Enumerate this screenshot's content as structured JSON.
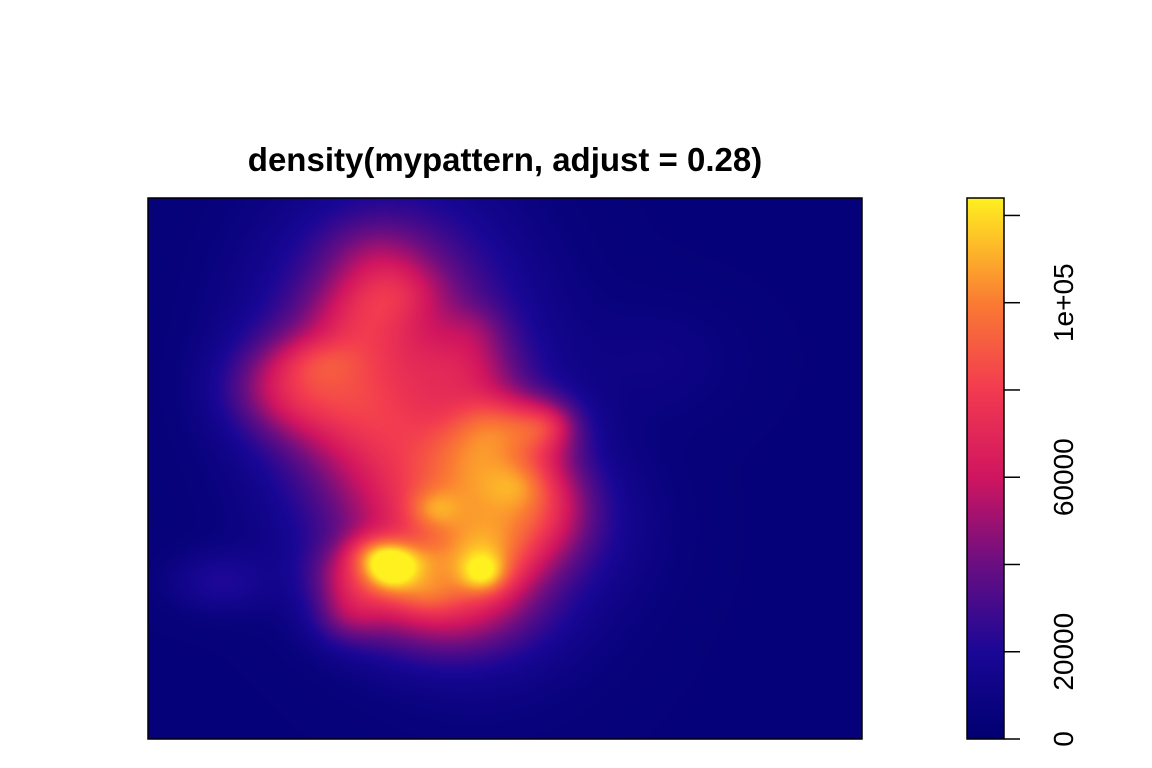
{
  "chart_data": {
    "type": "heatmap",
    "title": "density(mypattern, adjust = 0.28)",
    "xlabel": "",
    "ylabel": "",
    "axes_shown": false,
    "colorbar": {
      "range": [
        0,
        124000
      ],
      "ticks": [
        0,
        20000,
        40000,
        60000,
        80000,
        100000,
        120000
      ],
      "tick_labels": [
        "0",
        "20000",
        "",
        "60000",
        "",
        "1e+05",
        ""
      ],
      "label_orientation": "vertical",
      "placement": "right"
    },
    "color_scale": {
      "name": "spatstat default (navy → purple → magenta → orange → yellow)",
      "stops": [
        {
          "value": 0,
          "color": "#000070"
        },
        {
          "value": 20000,
          "color": "#1A0796"
        },
        {
          "value": 40000,
          "color": "#6A0E82"
        },
        {
          "value": 60000,
          "color": "#D01560"
        },
        {
          "value": 80000,
          "color": "#F23A50"
        },
        {
          "value": 100000,
          "color": "#FA7B33"
        },
        {
          "value": 124000,
          "color": "#FFF020"
        }
      ]
    },
    "background_value": 4000,
    "density_peaks": [
      {
        "x": 0.343,
        "y": 0.74,
        "peak": 48000,
        "sx": 0.12,
        "sy": 0.18
      },
      {
        "x": 0.33,
        "y": 0.56,
        "peak": 10000,
        "sx": 0.12,
        "sy": 0.11
      },
      {
        "x": 0.19,
        "y": 0.65,
        "peak": 26000,
        "sx": 0.06,
        "sy": 0.06
      },
      {
        "x": 0.24,
        "y": 0.64,
        "peak": 20000,
        "sx": 0.07,
        "sy": 0.08
      },
      {
        "x": 0.315,
        "y": 0.58,
        "peak": 14000,
        "sx": 0.06,
        "sy": 0.08
      },
      {
        "x": 0.3,
        "y": 0.78,
        "peak": 20000,
        "sx": 0.05,
        "sy": 0.06
      },
      {
        "x": 0.35,
        "y": 0.83,
        "peak": 16000,
        "sx": 0.045,
        "sy": 0.04
      },
      {
        "x": 0.32,
        "y": 0.9,
        "peak": 12000,
        "sx": 0.05,
        "sy": 0.045
      },
      {
        "x": 0.46,
        "y": 0.28,
        "peak": 14000,
        "sx": 0.12,
        "sy": 0.14
      },
      {
        "x": 0.4,
        "y": 0.23,
        "peak": 30000,
        "sx": 0.09,
        "sy": 0.06
      },
      {
        "x": 0.41,
        "y": 0.41,
        "peak": 38000,
        "sx": 0.12,
        "sy": 0.1
      },
      {
        "x": 0.46,
        "y": 0.44,
        "peak": 30000,
        "sx": 0.08,
        "sy": 0.14
      },
      {
        "x": 0.48,
        "y": 0.51,
        "peak": 22000,
        "sx": 0.06,
        "sy": 0.06
      },
      {
        "x": 0.47,
        "y": 0.33,
        "peak": 32000,
        "sx": 0.045,
        "sy": 0.05
      },
      {
        "x": 0.55,
        "y": 0.43,
        "peak": 30000,
        "sx": 0.05,
        "sy": 0.07
      },
      {
        "x": 0.55,
        "y": 0.58,
        "peak": 36000,
        "sx": 0.04,
        "sy": 0.04
      },
      {
        "x": 0.29,
        "y": 0.305,
        "peak": 26000,
        "sx": 0.045,
        "sy": 0.04
      },
      {
        "x": 0.28,
        "y": 0.23,
        "peak": 22000,
        "sx": 0.035,
        "sy": 0.04
      },
      {
        "x": 0.4,
        "y": 0.425,
        "peak": 18000,
        "sx": 0.025,
        "sy": 0.025
      },
      {
        "x": 0.39,
        "y": 0.27,
        "peak": 20000,
        "sx": 0.035,
        "sy": 0.03
      },
      {
        "x": 0.1,
        "y": 0.29,
        "peak": 16000,
        "sx": 0.05,
        "sy": 0.04
      },
      {
        "x": 0.45,
        "y": 0.69,
        "peak": 18000,
        "sx": 0.05,
        "sy": 0.05
      },
      {
        "x": 0.72,
        "y": 0.7,
        "peak": 6000,
        "sx": 0.08,
        "sy": 0.08
      },
      {
        "x": 0.62,
        "y": 0.4,
        "peak": 6000,
        "sx": 0.08,
        "sy": 0.1
      },
      {
        "x": 0.46,
        "y": 0.76,
        "peak": 7000,
        "sx": 0.03,
        "sy": 0.03
      },
      {
        "x": 0.24,
        "y": 0.7,
        "peak": 12000,
        "sx": 0.04,
        "sy": 0.03
      },
      {
        "x": 0.34,
        "y": 0.3,
        "peak": 18000,
        "sx": 0.05,
        "sy": 0.05
      },
      {
        "x": 0.34,
        "y": 0.32,
        "peak": 52000,
        "sx": 0.025,
        "sy": 0.03
      },
      {
        "x": 0.31,
        "y": 0.345,
        "peak": 20000,
        "sx": 0.025,
        "sy": 0.025
      },
      {
        "x": 0.38,
        "y": 0.33,
        "peak": 14000,
        "sx": 0.03,
        "sy": 0.025
      },
      {
        "x": 0.47,
        "y": 0.305,
        "peak": 30000,
        "sx": 0.022,
        "sy": 0.025
      },
      {
        "x": 0.56,
        "y": 0.58,
        "peak": 8000,
        "sx": 0.025,
        "sy": 0.025
      },
      {
        "x": 0.47,
        "y": 0.56,
        "peak": 15000,
        "sx": 0.045,
        "sy": 0.04
      },
      {
        "x": 0.52,
        "y": 0.47,
        "peak": 10000,
        "sx": 0.03,
        "sy": 0.03
      },
      {
        "x": 0.48,
        "y": 0.6,
        "peak": 14000,
        "sx": 0.035,
        "sy": 0.035
      }
    ]
  }
}
